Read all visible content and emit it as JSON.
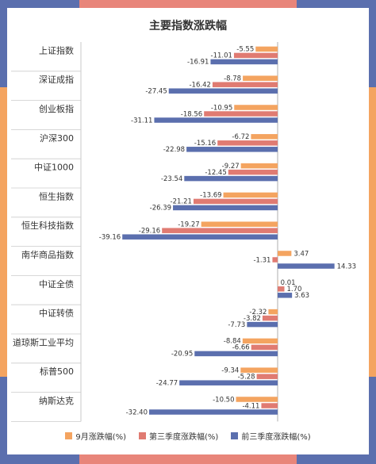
{
  "chart_data": {
    "type": "bar",
    "orientation": "horizontal",
    "title": "主要指数涨跌幅",
    "categories": [
      "上证指数",
      "深证成指",
      "创业板指",
      "沪深300",
      "中证1000",
      "恒生指数",
      "恒生科技指数",
      "南华商品指数",
      "中证全债",
      "中证转债",
      "道琼斯工业平均",
      "标普500",
      "纳斯达克"
    ],
    "series": [
      {
        "name": "9月涨跌幅(%)",
        "color": "#F4A460",
        "values": [
          -5.55,
          -8.78,
          -10.95,
          -6.72,
          -9.27,
          -13.69,
          -19.27,
          3.47,
          0.01,
          -2.32,
          -8.84,
          -9.34,
          -10.5
        ]
      },
      {
        "name": "第三季度涨跌幅(%)",
        "color": "#E07B72",
        "values": [
          -11.01,
          -16.42,
          -18.56,
          -15.16,
          -12.45,
          -21.21,
          -29.16,
          -1.31,
          1.7,
          -3.82,
          -6.66,
          -5.28,
          -4.11
        ]
      },
      {
        "name": "前三季度涨跌幅(%)",
        "color": "#5B6FAE",
        "values": [
          -16.91,
          -27.45,
          -31.11,
          -22.98,
          -23.54,
          -26.39,
          -39.16,
          14.33,
          3.63,
          -7.73,
          -20.95,
          -24.77,
          -32.4
        ]
      }
    ],
    "value_labels": [
      [
        "-5.55",
        "-11.01",
        "-16.91"
      ],
      [
        "-8.78",
        "-16.42",
        "-27.45"
      ],
      [
        "-10.95",
        "-18.56",
        "-31.11"
      ],
      [
        "-6.72",
        "-15.16",
        "-22.98"
      ],
      [
        "-9.27",
        "-12.45",
        "-23.54"
      ],
      [
        "-13.69",
        "-21.21",
        "-26.39"
      ],
      [
        "-19.27",
        "-29.16",
        "-39.16"
      ],
      [
        "3.47",
        "-1.31",
        "14.33"
      ],
      [
        "0.01",
        "1.70",
        "3.63"
      ],
      [
        "-2.32",
        "-3.82",
        "-7.73"
      ],
      [
        "-8.84",
        "-6.66",
        "-20.95"
      ],
      [
        "-9.34",
        "-5.28",
        "-24.77"
      ],
      [
        "-10.50",
        "-4.11",
        "-32.40"
      ]
    ],
    "xlim": [
      -45,
      20
    ],
    "legend_position": "bottom",
    "grid": false
  },
  "colors": {
    "frame_blue": "#5B6FAE",
    "frame_orange": "#F4A460",
    "frame_salmon": "#E8857A",
    "separator": "#cccccc"
  }
}
